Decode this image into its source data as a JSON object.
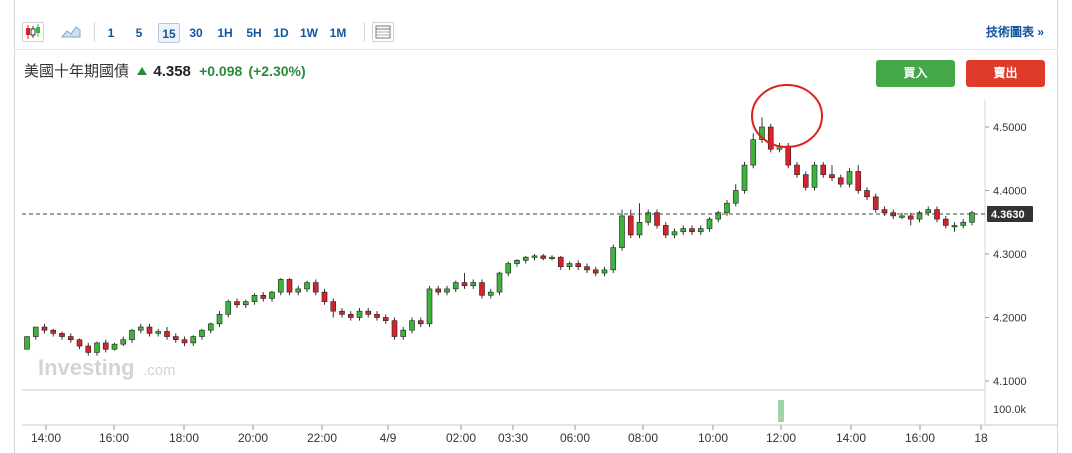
{
  "toolbar": {
    "intervals": [
      "1",
      "5",
      "15",
      "30",
      "1H",
      "5H",
      "1D",
      "1W",
      "1M"
    ],
    "active_interval": "15",
    "tech_link": "技術圖表 »"
  },
  "quote": {
    "name": "美國十年期國債",
    "price": "4.358",
    "change": "+0.098",
    "change_pct": "(+2.30%)"
  },
  "buttons": {
    "buy": "買入",
    "sell": "賣出"
  },
  "watermark": {
    "main": "Investing",
    "suffix": ".com"
  },
  "colors": {
    "up": "#3cb43c",
    "down": "#d6232b",
    "highlight": "#e0201a"
  },
  "chart_data": {
    "type": "candlestick",
    "y_ticks": [
      "4.5000",
      "4.4000",
      "4.3000",
      "4.2000",
      "4.1000"
    ],
    "ylim": [
      4.1,
      4.53
    ],
    "current_price_label": "4.3630",
    "current_price": 4.363,
    "volume_label": "100.0k",
    "x_ticks": [
      "14:00",
      "16:00",
      "18:00",
      "20:00",
      "22:00",
      "4/9",
      "02:00",
      "03:30",
      "06:00",
      "08:00",
      "10:00",
      "12:00",
      "14:00",
      "16:00",
      "18"
    ],
    "candles": [
      [
        4.15,
        4.17,
        4.17,
        4.15
      ],
      [
        4.17,
        4.185,
        4.185,
        4.165
      ],
      [
        4.185,
        4.18,
        4.19,
        4.175
      ],
      [
        4.18,
        4.175,
        4.182,
        4.17
      ],
      [
        4.175,
        4.17,
        4.178,
        4.165
      ],
      [
        4.17,
        4.165,
        4.175,
        4.16
      ],
      [
        4.165,
        4.155,
        4.167,
        4.15
      ],
      [
        4.155,
        4.145,
        4.16,
        4.14
      ],
      [
        4.145,
        4.16,
        4.162,
        4.14
      ],
      [
        4.16,
        4.15,
        4.165,
        4.145
      ],
      [
        4.15,
        4.158,
        4.16,
        4.148
      ],
      [
        4.158,
        4.165,
        4.17,
        4.155
      ],
      [
        4.165,
        4.18,
        4.182,
        4.16
      ],
      [
        4.18,
        4.185,
        4.19,
        4.175
      ],
      [
        4.185,
        4.175,
        4.19,
        4.17
      ],
      [
        4.175,
        4.178,
        4.182,
        4.17
      ],
      [
        4.178,
        4.17,
        4.185,
        4.165
      ],
      [
        4.17,
        4.165,
        4.175,
        4.16
      ],
      [
        4.165,
        4.16,
        4.17,
        4.155
      ],
      [
        4.16,
        4.17,
        4.172,
        4.155
      ],
      [
        4.17,
        4.18,
        4.182,
        4.165
      ],
      [
        4.18,
        4.19,
        4.192,
        4.175
      ],
      [
        4.19,
        4.205,
        4.21,
        4.185
      ],
      [
        4.205,
        4.225,
        4.228,
        4.2
      ],
      [
        4.225,
        4.22,
        4.23,
        4.215
      ],
      [
        4.22,
        4.225,
        4.228,
        4.215
      ],
      [
        4.225,
        4.235,
        4.238,
        4.22
      ],
      [
        4.235,
        4.23,
        4.24,
        4.225
      ],
      [
        4.23,
        4.24,
        4.242,
        4.225
      ],
      [
        4.24,
        4.26,
        4.262,
        4.235
      ],
      [
        4.26,
        4.24,
        4.262,
        4.235
      ],
      [
        4.24,
        4.245,
        4.25,
        4.235
      ],
      [
        4.245,
        4.255,
        4.258,
        4.24
      ],
      [
        4.255,
        4.24,
        4.26,
        4.235
      ],
      [
        4.24,
        4.225,
        4.245,
        4.22
      ],
      [
        4.225,
        4.21,
        4.23,
        4.2
      ],
      [
        4.21,
        4.205,
        4.215,
        4.2
      ],
      [
        4.205,
        4.2,
        4.21,
        4.195
      ],
      [
        4.2,
        4.21,
        4.215,
        4.195
      ],
      [
        4.21,
        4.205,
        4.215,
        4.2
      ],
      [
        4.205,
        4.2,
        4.21,
        4.195
      ],
      [
        4.2,
        4.195,
        4.205,
        4.19
      ],
      [
        4.195,
        4.17,
        4.2,
        4.165
      ],
      [
        4.17,
        4.18,
        4.185,
        4.165
      ],
      [
        4.18,
        4.195,
        4.2,
        4.175
      ],
      [
        4.195,
        4.19,
        4.2,
        4.185
      ],
      [
        4.19,
        4.245,
        4.25,
        4.185
      ],
      [
        4.245,
        4.24,
        4.25,
        4.235
      ],
      [
        4.24,
        4.245,
        4.25,
        4.235
      ],
      [
        4.245,
        4.255,
        4.258,
        4.24
      ],
      [
        4.255,
        4.25,
        4.27,
        4.245
      ],
      [
        4.25,
        4.255,
        4.26,
        4.245
      ],
      [
        4.255,
        4.235,
        4.26,
        4.23
      ],
      [
        4.235,
        4.24,
        4.245,
        4.23
      ],
      [
        4.24,
        4.27,
        4.272,
        4.235
      ],
      [
        4.27,
        4.285,
        4.288,
        4.265
      ],
      [
        4.285,
        4.29,
        4.292,
        4.28
      ],
      [
        4.29,
        4.295,
        4.297,
        4.285
      ],
      [
        4.295,
        4.297,
        4.3,
        4.29
      ],
      [
        4.297,
        4.293,
        4.3,
        4.29
      ],
      [
        4.293,
        4.295,
        4.298,
        4.29
      ],
      [
        4.295,
        4.28,
        4.297,
        4.275
      ],
      [
        4.28,
        4.285,
        4.288,
        4.275
      ],
      [
        4.285,
        4.28,
        4.29,
        4.275
      ],
      [
        4.28,
        4.275,
        4.285,
        4.27
      ],
      [
        4.275,
        4.27,
        4.28,
        4.265
      ],
      [
        4.27,
        4.275,
        4.28,
        4.265
      ],
      [
        4.275,
        4.31,
        4.315,
        4.27
      ],
      [
        4.31,
        4.36,
        4.37,
        4.305
      ],
      [
        4.36,
        4.33,
        4.37,
        4.325
      ],
      [
        4.33,
        4.35,
        4.38,
        4.325
      ],
      [
        4.35,
        4.365,
        4.37,
        4.345
      ],
      [
        4.365,
        4.345,
        4.37,
        4.34
      ],
      [
        4.345,
        4.33,
        4.35,
        4.325
      ],
      [
        4.33,
        4.335,
        4.34,
        4.325
      ],
      [
        4.335,
        4.34,
        4.345,
        4.33
      ],
      [
        4.34,
        4.335,
        4.345,
        4.33
      ],
      [
        4.335,
        4.34,
        4.345,
        4.33
      ],
      [
        4.34,
        4.355,
        4.358,
        4.335
      ],
      [
        4.355,
        4.365,
        4.368,
        4.35
      ],
      [
        4.365,
        4.38,
        4.385,
        4.36
      ],
      [
        4.38,
        4.4,
        4.41,
        4.375
      ],
      [
        4.4,
        4.44,
        4.445,
        4.395
      ],
      [
        4.44,
        4.48,
        4.49,
        4.435
      ],
      [
        4.48,
        4.5,
        4.515,
        4.475
      ],
      [
        4.5,
        4.465,
        4.505,
        4.46
      ],
      [
        4.465,
        4.47,
        4.475,
        4.46
      ],
      [
        4.47,
        4.44,
        4.475,
        4.435
      ],
      [
        4.44,
        4.425,
        4.445,
        4.42
      ],
      [
        4.425,
        4.405,
        4.43,
        4.4
      ],
      [
        4.405,
        4.44,
        4.445,
        4.4
      ],
      [
        4.44,
        4.425,
        4.445,
        4.42
      ],
      [
        4.425,
        4.42,
        4.44,
        4.415
      ],
      [
        4.42,
        4.41,
        4.425,
        4.405
      ],
      [
        4.41,
        4.43,
        4.435,
        4.405
      ],
      [
        4.43,
        4.4,
        4.44,
        4.395
      ],
      [
        4.4,
        4.39,
        4.405,
        4.385
      ],
      [
        4.39,
        4.37,
        4.395,
        4.365
      ],
      [
        4.37,
        4.365,
        4.375,
        4.36
      ],
      [
        4.365,
        4.36,
        4.37,
        4.355
      ],
      [
        4.36,
        4.36,
        4.365,
        4.355
      ],
      [
        4.36,
        4.355,
        4.365,
        4.345
      ],
      [
        4.355,
        4.365,
        4.368,
        4.35
      ],
      [
        4.365,
        4.37,
        4.375,
        4.36
      ],
      [
        4.37,
        4.355,
        4.375,
        4.35
      ],
      [
        4.355,
        4.345,
        4.36,
        4.34
      ],
      [
        4.345,
        4.345,
        4.35,
        4.335
      ],
      [
        4.345,
        4.35,
        4.355,
        4.34
      ],
      [
        4.35,
        4.365,
        4.368,
        4.345
      ]
    ]
  }
}
